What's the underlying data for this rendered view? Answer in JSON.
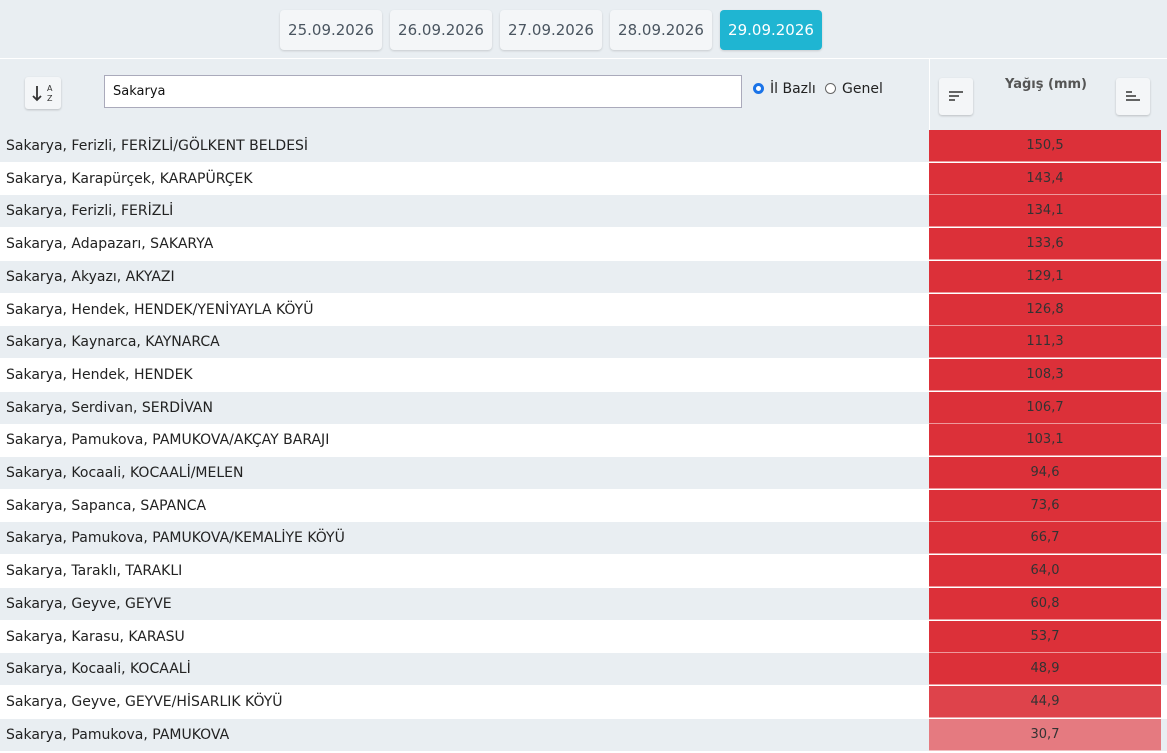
{
  "date_tabs": [
    "25.09.2026",
    "26.09.2026",
    "27.09.2026",
    "28.09.2026",
    "29.09.2026"
  ],
  "active_tab": 4,
  "search": "Sakarya",
  "radio": [
    {
      "label": "İl Bazlı",
      "checked": true
    },
    {
      "label": "Genel",
      "checked": false
    }
  ],
  "column_title": "Yağış (mm)",
  "rows": [
    {
      "location": "Sakarya, Ferizli, FERİZLİ/GÖLKENT BELDESİ",
      "value": "150,5",
      "color": "#dc3039"
    },
    {
      "location": "Sakarya, Karapürçek, KARAPÜRÇEK",
      "value": "143,4",
      "color": "#dc3039"
    },
    {
      "location": "Sakarya, Ferizli, FERİZLİ",
      "value": "134,1",
      "color": "#dc3039"
    },
    {
      "location": "Sakarya, Adapazarı, SAKARYA",
      "value": "133,6",
      "color": "#dc3039"
    },
    {
      "location": "Sakarya, Akyazı, AKYAZI",
      "value": "129,1",
      "color": "#dc3039"
    },
    {
      "location": "Sakarya, Hendek, HENDEK/YENİYAYLA KÖYÜ",
      "value": "126,8",
      "color": "#dc3039"
    },
    {
      "location": "Sakarya, Kaynarca, KAYNARCA",
      "value": "111,3",
      "color": "#dc3039"
    },
    {
      "location": "Sakarya, Hendek, HENDEK",
      "value": "108,3",
      "color": "#dc3039"
    },
    {
      "location": "Sakarya, Serdivan, SERDİVAN",
      "value": "106,7",
      "color": "#dc3039"
    },
    {
      "location": "Sakarya, Pamukova, PAMUKOVA/AKÇAY BARAJI",
      "value": "103,1",
      "color": "#dc3039"
    },
    {
      "location": "Sakarya, Kocaali, KOCAALİ/MELEN",
      "value": "94,6",
      "color": "#dc3039"
    },
    {
      "location": "Sakarya, Sapanca, SAPANCA",
      "value": "73,6",
      "color": "#dc3039"
    },
    {
      "location": "Sakarya, Pamukova, PAMUKOVA/KEMALİYE KÖYÜ",
      "value": "66,7",
      "color": "#dc3039"
    },
    {
      "location": "Sakarya, Taraklı, TARAKLI",
      "value": "64,0",
      "color": "#dc3039"
    },
    {
      "location": "Sakarya, Geyve, GEYVE",
      "value": "60,8",
      "color": "#dc3039"
    },
    {
      "location": "Sakarya, Karasu, KARASU",
      "value": "53,7",
      "color": "#dc3039"
    },
    {
      "location": "Sakarya, Kocaali, KOCAALİ",
      "value": "48,9",
      "color": "#dc3039"
    },
    {
      "location": "Sakarya, Geyve, GEYVE/HİSARLIK KÖYÜ",
      "value": "44,9",
      "color": "#de434b"
    },
    {
      "location": "Sakarya, Pamukova, PAMUKOVA",
      "value": "30,7",
      "color": "#e57a80"
    }
  ]
}
